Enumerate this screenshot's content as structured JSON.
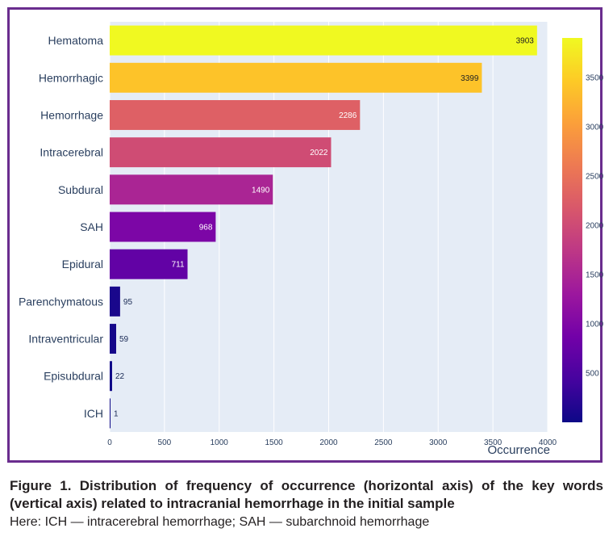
{
  "chart_data": {
    "type": "bar",
    "orientation": "horizontal",
    "categories": [
      "Hematoma",
      "Hemorrhagic",
      "Hemorrhage",
      "Intracerebral",
      "Subdural",
      "SAH",
      "Epidural",
      "Parenchymatous",
      "Intraventricular",
      "Episubdural",
      "ICH"
    ],
    "values": [
      3903,
      3399,
      2286,
      2022,
      1490,
      968,
      711,
      95,
      59,
      22,
      1
    ],
    "data_labels": [
      "3903",
      "3399",
      "2286",
      "2022",
      "1490",
      "968",
      "711",
      "95",
      "59",
      "22",
      "1"
    ],
    "xlabel": "Occurrence",
    "ylabel": "",
    "xlim": [
      0,
      4000
    ],
    "x_ticks": [
      0,
      500,
      1000,
      1500,
      2000,
      2500,
      3000,
      3500,
      4000
    ],
    "x_tick_labels": [
      "0",
      "500",
      "1000",
      "1500",
      "2000",
      "2500",
      "3000",
      "3500",
      "4000"
    ],
    "grid": true,
    "colorbar": {
      "range": [
        1,
        3903
      ],
      "ticks": [
        500,
        1000,
        1500,
        2000,
        2500,
        3000,
        3500
      ],
      "tick_labels": [
        "500",
        "1000",
        "1500",
        "2000",
        "2500",
        "3000",
        "3500"
      ],
      "colors": [
        "#0d0887",
        "#46039f",
        "#7201a8",
        "#9c179e",
        "#bd3786",
        "#d8576b",
        "#ed7953",
        "#fb9f3a",
        "#fdca26",
        "#f0f921"
      ]
    },
    "plot_background": "#e5ecf6",
    "frame_color": "#6a2d8e"
  },
  "caption": {
    "title": "Figure 1. Distribution of frequency of occurrence (horizontal axis) of the key words (vertical axis) related to intracranial hemorrhage in the initial sample",
    "note": "Here: ICH — intracerebral hemorrhage; SAH — subarchnoid hemorrhage"
  }
}
